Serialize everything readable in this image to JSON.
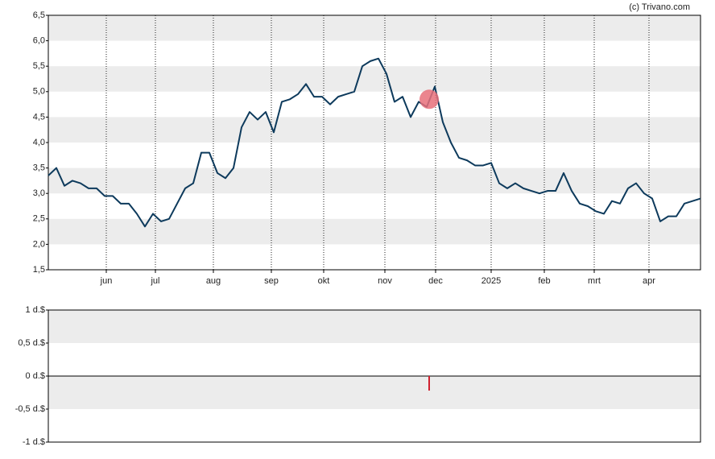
{
  "credit": "(c) Trivano.com",
  "chart_data": [
    {
      "type": "line",
      "x": [
        0,
        1,
        2,
        3,
        4,
        5,
        6,
        7,
        8,
        9,
        10,
        11,
        12,
        13,
        14,
        15,
        16,
        17,
        18,
        19,
        20,
        21,
        22,
        23,
        24,
        25,
        26,
        27,
        28,
        29,
        30,
        31,
        32,
        33,
        34,
        35,
        36,
        37,
        38,
        39,
        40,
        41,
        42,
        43,
        44,
        45,
        46,
        47,
        48,
        49,
        50,
        51,
        52,
        53,
        54,
        55,
        56,
        57,
        58,
        59,
        60,
        61,
        62,
        63,
        64,
        65,
        66,
        67,
        68,
        69,
        70,
        71,
        72,
        73,
        74,
        75,
        76,
        77,
        78,
        79,
        80,
        81
      ],
      "series": [
        {
          "color": "#0d3a5c",
          "values": [
            3.35,
            3.5,
            3.15,
            3.25,
            3.2,
            3.1,
            3.1,
            2.95,
            2.95,
            2.8,
            2.8,
            2.6,
            2.35,
            2.6,
            2.45,
            2.5,
            2.8,
            3.1,
            3.2,
            3.8,
            3.8,
            3.4,
            3.3,
            3.5,
            4.3,
            4.6,
            4.45,
            4.6,
            4.2,
            4.8,
            4.85,
            4.95,
            5.15,
            4.9,
            4.9,
            4.75,
            4.9,
            4.95,
            5.0,
            5.5,
            5.6,
            5.65,
            5.35,
            4.8,
            4.9,
            4.5,
            4.8,
            4.7,
            5.1,
            4.4,
            4.0,
            3.7,
            3.65,
            3.55,
            3.55,
            3.6,
            3.2,
            3.1,
            3.2,
            3.1,
            3.05,
            3.0,
            3.05,
            3.05,
            3.4,
            3.05,
            2.8,
            2.75,
            2.65,
            2.6,
            2.85,
            2.8,
            3.1,
            3.2,
            3.0,
            2.9,
            2.45,
            2.55,
            2.55,
            2.8,
            2.85,
            2.9
          ]
        }
      ],
      "marker": {
        "x": 47.3,
        "y": 4.85,
        "color": "#e8707a"
      },
      "xlim": [
        0,
        81
      ],
      "xticks": [
        {
          "value": 7.2,
          "label": "jun"
        },
        {
          "value": 13.3,
          "label": "jul"
        },
        {
          "value": 20.5,
          "label": "aug"
        },
        {
          "value": 27.7,
          "label": "sep"
        },
        {
          "value": 34.2,
          "label": "okt"
        },
        {
          "value": 41.8,
          "label": "nov"
        },
        {
          "value": 48.1,
          "label": "dec"
        },
        {
          "value": 55,
          "label": "2025"
        },
        {
          "value": 61.6,
          "label": "feb"
        },
        {
          "value": 67.8,
          "label": "mrt"
        },
        {
          "value": 74.6,
          "label": "apr"
        }
      ],
      "ylim": [
        1.5,
        6.5
      ],
      "yticks": [
        {
          "value": 1.5,
          "label": "1,5"
        },
        {
          "value": 2,
          "label": "2,0"
        },
        {
          "value": 2.5,
          "label": "2,5"
        },
        {
          "value": 3,
          "label": "3,0"
        },
        {
          "value": 3.5,
          "label": "3,5"
        },
        {
          "value": 4,
          "label": "4,0"
        },
        {
          "value": 4.5,
          "label": "4,5"
        },
        {
          "value": 5,
          "label": "5,0"
        },
        {
          "value": 5.5,
          "label": "5,5"
        },
        {
          "value": 6,
          "label": "6,0"
        },
        {
          "value": 6.5,
          "label": "6,5"
        }
      ]
    },
    {
      "type": "bar",
      "x": [
        47.3
      ],
      "values": [
        -0.22
      ],
      "color": "#d0202e",
      "xlim": [
        0,
        81
      ],
      "ylim": [
        -1,
        1
      ],
      "yticks": [
        {
          "value": -1,
          "label": "-1 d.$"
        },
        {
          "value": -0.5,
          "label": "-0,5 d.$"
        },
        {
          "value": 0,
          "label": "0 d.$"
        },
        {
          "value": 0.5,
          "label": "0,5 d.$"
        },
        {
          "value": 1,
          "label": "1 d.$"
        }
      ]
    }
  ]
}
